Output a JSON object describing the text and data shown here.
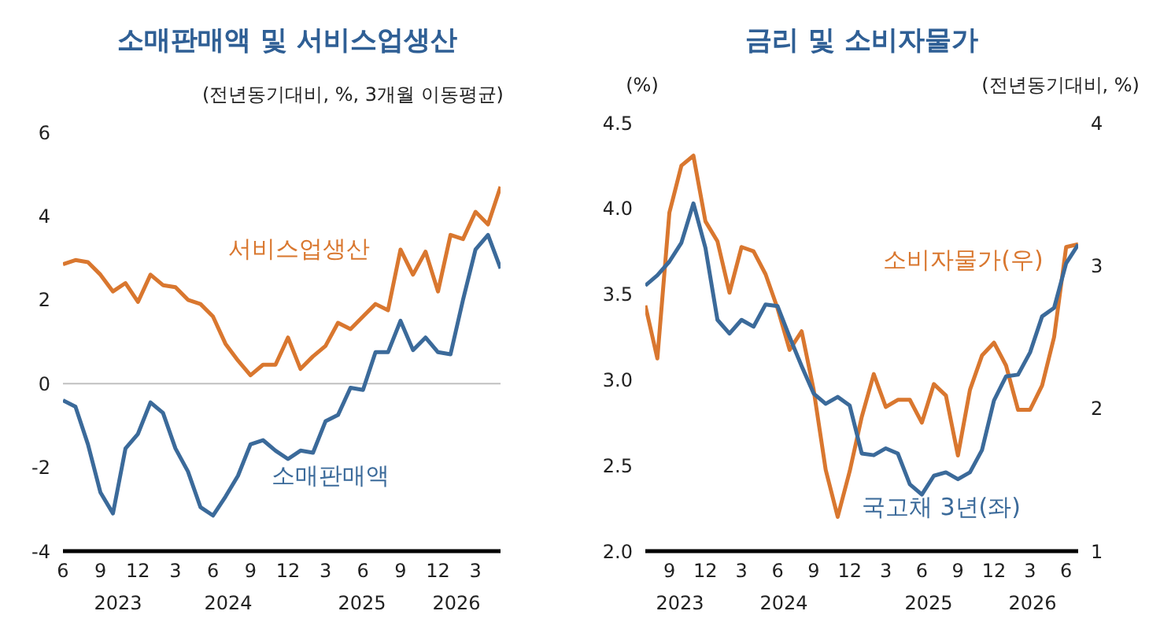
{
  "chart_data": [
    {
      "type": "line",
      "title": "소매판매액 및 서비스업생산",
      "subtitle": "(전년동기대비, %, 3개월 이동평균)",
      "x": [
        "2023-06",
        "2023-07",
        "2023-08",
        "2023-09",
        "2023-10",
        "2023-11",
        "2023-12",
        "2024-01",
        "2024-02",
        "2024-03",
        "2024-04",
        "2024-05",
        "2024-06",
        "2024-07",
        "2024-08",
        "2024-09",
        "2024-10",
        "2024-11",
        "2024-12",
        "2025-01",
        "2025-02",
        "2025-03",
        "2025-04",
        "2025-05",
        "2025-06",
        "2025-07",
        "2025-08",
        "2025-09",
        "2025-10",
        "2025-11",
        "2025-12",
        "2026-01",
        "2026-02",
        "2026-03",
        "2026-04",
        "2026-05"
      ],
      "series": [
        {
          "name": "서비스업생산",
          "color": "#d9772f",
          "values": [
            2.85,
            2.95,
            2.9,
            2.6,
            2.2,
            2.4,
            1.95,
            2.6,
            2.35,
            2.3,
            2.0,
            1.9,
            1.6,
            0.95,
            0.55,
            0.2,
            0.45,
            0.45,
            1.1,
            0.35,
            0.65,
            0.9,
            1.45,
            1.3,
            1.6,
            1.9,
            1.75,
            3.2,
            2.6,
            3.15,
            2.2,
            3.55,
            3.45,
            4.1,
            3.8,
            4.7
          ]
        },
        {
          "name": "소매판매액",
          "color": "#3b6a9a",
          "values": [
            -0.4,
            -0.55,
            -1.45,
            -2.6,
            -3.1,
            -1.55,
            -1.2,
            -0.45,
            -0.7,
            -1.55,
            -2.1,
            -2.95,
            -3.15,
            -2.7,
            -2.2,
            -1.45,
            -1.35,
            -1.6,
            -1.8,
            -1.6,
            -1.65,
            -0.9,
            -0.75,
            -0.1,
            -0.15,
            0.75,
            0.75,
            1.5,
            0.8,
            1.1,
            0.75,
            0.7,
            2.0,
            3.2,
            3.55,
            2.75
          ]
        }
      ],
      "xlim": [
        "2023-06",
        "2026-05"
      ],
      "xticks": [
        {
          "value": "2023-06",
          "label": "6"
        },
        {
          "value": "2023-09",
          "label": "9"
        },
        {
          "value": "2023-12",
          "label": "12"
        },
        {
          "value": "2024-03",
          "label": "3"
        },
        {
          "value": "2024-06",
          "label": "6"
        },
        {
          "value": "2024-09",
          "label": "9"
        },
        {
          "value": "2024-12",
          "label": "12"
        },
        {
          "value": "2025-03",
          "label": "3"
        },
        {
          "value": "2025-06",
          "label": "6"
        },
        {
          "value": "2025-09",
          "label": "9"
        },
        {
          "value": "2025-12",
          "label": "12"
        },
        {
          "value": "2026-03",
          "label": "3"
        }
      ],
      "ylim": [
        -4,
        6
      ],
      "yticks": [
        -4,
        -2,
        0,
        2,
        4,
        6
      ],
      "ref_lines": [
        {
          "axis": "y",
          "value": 0,
          "color": "#c0c0c0"
        }
      ],
      "annotations": [
        "2023",
        "2024",
        "2025",
        "2026"
      ],
      "grid": false,
      "legend": false,
      "marker": "none",
      "line_style": "solid"
    },
    {
      "type": "line",
      "title": "금리 및 소비자물가",
      "ylabel": "(%)",
      "y2label": "(전년동기대비, %)",
      "x": [
        "2023-07",
        "2023-08",
        "2023-09",
        "2023-10",
        "2023-11",
        "2023-12",
        "2024-01",
        "2024-02",
        "2024-03",
        "2024-04",
        "2024-05",
        "2024-06",
        "2024-07",
        "2024-08",
        "2024-09",
        "2024-10",
        "2024-11",
        "2024-12",
        "2025-01",
        "2025-02",
        "2025-03",
        "2025-04",
        "2025-05",
        "2025-06",
        "2025-07",
        "2025-08",
        "2025-09",
        "2025-10",
        "2025-11",
        "2025-12",
        "2026-01",
        "2026-02",
        "2026-03",
        "2026-04",
        "2026-05",
        "2026-06",
        "2026-07"
      ],
      "series": [
        {
          "name": "소비자물가(우)",
          "color": "#d9772f",
          "axis": "y2",
          "values": [
            2.72,
            2.35,
            3.37,
            3.7,
            3.77,
            3.31,
            3.17,
            2.81,
            3.13,
            3.1,
            2.94,
            2.7,
            2.41,
            2.54,
            2.13,
            1.57,
            1.24,
            1.56,
            1.94,
            2.24,
            2.01,
            2.06,
            2.06,
            1.9,
            2.17,
            2.09,
            1.67,
            2.13,
            2.37,
            2.46,
            2.3,
            1.99,
            1.99,
            2.16,
            2.5,
            3.13,
            3.15
          ]
        },
        {
          "name": "국고채 3년(좌)",
          "color": "#3b6a9a",
          "axis": "y",
          "values": [
            3.55,
            3.61,
            3.69,
            3.8,
            4.03,
            3.77,
            3.35,
            3.27,
            3.35,
            3.31,
            3.44,
            3.43,
            3.25,
            3.08,
            2.92,
            2.86,
            2.9,
            2.85,
            2.57,
            2.56,
            2.6,
            2.57,
            2.39,
            2.33,
            2.44,
            2.46,
            2.42,
            2.46,
            2.59,
            2.88,
            3.02,
            3.03,
            3.16,
            3.37,
            3.42,
            3.68,
            3.79
          ]
        }
      ],
      "xlim": [
        "2023-07",
        "2026-07"
      ],
      "xticks": [
        {
          "value": "2023-09",
          "label": "9"
        },
        {
          "value": "2023-12",
          "label": "12"
        },
        {
          "value": "2024-03",
          "label": "3"
        },
        {
          "value": "2024-06",
          "label": "6"
        },
        {
          "value": "2024-09",
          "label": "9"
        },
        {
          "value": "2024-12",
          "label": "12"
        },
        {
          "value": "2025-03",
          "label": "3"
        },
        {
          "value": "2025-06",
          "label": "6"
        },
        {
          "value": "2025-09",
          "label": "9"
        },
        {
          "value": "2025-12",
          "label": "12"
        },
        {
          "value": "2026-03",
          "label": "3"
        },
        {
          "value": "2026-06",
          "label": "6"
        }
      ],
      "ylim": [
        2,
        4.5
      ],
      "yticks": [
        {
          "value": 2,
          "label": "2.0"
        },
        {
          "value": 2.5,
          "label": "2.5"
        },
        {
          "value": 3,
          "label": "3.0"
        },
        {
          "value": 3.5,
          "label": "3.5"
        },
        {
          "value": 4,
          "label": "4.0"
        },
        {
          "value": 4.5,
          "label": "4.5"
        }
      ],
      "y2lim": [
        1,
        4
      ],
      "y2ticks": [
        1,
        2,
        3,
        4
      ],
      "annotations": [
        "2023",
        "2024",
        "2025",
        "2026"
      ],
      "grid": false,
      "legend": false,
      "marker": "none",
      "line_style": "solid"
    }
  ]
}
